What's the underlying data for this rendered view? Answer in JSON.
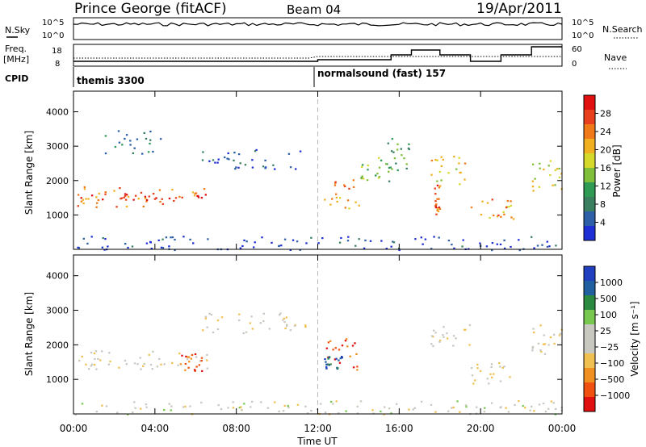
{
  "header": {
    "station": "Prince George (fitACF)",
    "beam": "Beam 04",
    "date": "19/Apr/2011"
  },
  "aux": {
    "nsky_label": "N.Sky",
    "nsky_top": "10^5",
    "nsky_bot": "10^0",
    "nsearch_label": "N.Search",
    "nsearch_top": "10^5",
    "nsearch_bot": "10^0",
    "freq_label": "Freq.",
    "freq_unit": "[MHz]",
    "freq_top": "18",
    "freq_bot": "8",
    "nave_label": "Nave",
    "nave_top": "60",
    "nave_bot": "0",
    "cpid_label": "CPID",
    "cpid_1": "themis 3300",
    "cpid_2": "normalsound (fast) 157"
  },
  "colors": {
    "power": [
      "#1f2fd6",
      "#2d5fa8",
      "#3a8060",
      "#2e9a54",
      "#7fbf3a",
      "#d6d92a",
      "#f0b020",
      "#f07a18",
      "#e8401c",
      "#e01010"
    ],
    "velocity": [
      "#e01010",
      "#f05010",
      "#f09020",
      "#f0c050",
      "#c8c8c0",
      "#c8c8c0",
      "#78c850",
      "#2a8a40",
      "#2060a0",
      "#2040c0"
    ]
  },
  "chart_data": [
    {
      "type": "heatmap",
      "quantity": "Power",
      "ylabel": "Slant Range [km]",
      "xlabel": "",
      "ylim": [
        0,
        4600
      ],
      "y_ticks": [
        1000,
        2000,
        3000,
        4000
      ],
      "x_ticks_hours": [
        0,
        4,
        8,
        12,
        16,
        20,
        24
      ],
      "colorbar": {
        "label": "Power [dB]",
        "ticks": [
          "28",
          "24",
          "20",
          "16",
          "12",
          "8",
          "4"
        ]
      },
      "patches": [
        {
          "t0": 0.0,
          "t1": 6.6,
          "r0": 1250,
          "r1": 1850,
          "level": 0.75
        },
        {
          "t0": 0.0,
          "t1": 6.6,
          "r0": 1450,
          "r1": 1650,
          "level": 0.95
        },
        {
          "t0": 6.3,
          "t1": 11.3,
          "r0": 2350,
          "r1": 2950,
          "level": 0.15
        },
        {
          "t0": 1.5,
          "t1": 4.3,
          "r0": 2800,
          "r1": 3500,
          "level": 0.25
        },
        {
          "t0": 12.3,
          "t1": 14.0,
          "r0": 1200,
          "r1": 2050,
          "level": 0.7
        },
        {
          "t0": 14.0,
          "t1": 15.5,
          "r0": 2000,
          "r1": 2700,
          "level": 0.4
        },
        {
          "t0": 15.3,
          "t1": 16.7,
          "r0": 2200,
          "r1": 3300,
          "level": 0.35
        },
        {
          "t0": 17.5,
          "t1": 19.3,
          "r0": 1900,
          "r1": 2750,
          "level": 0.6
        },
        {
          "t0": 17.7,
          "t1": 18.0,
          "r0": 1000,
          "r1": 1900,
          "level": 0.8
        },
        {
          "t0": 19.5,
          "t1": 21.6,
          "r0": 900,
          "r1": 1500,
          "level": 0.7
        },
        {
          "t0": 22.5,
          "t1": 24.0,
          "r0": 1700,
          "r1": 2600,
          "level": 0.55
        },
        {
          "t0": 0.0,
          "t1": 24.0,
          "r0": 0,
          "r1": 400,
          "level": 0.08
        }
      ]
    },
    {
      "type": "heatmap",
      "quantity": "Velocity",
      "ylabel": "Slant Range [km]",
      "xlabel": "Time UT",
      "ylim": [
        0,
        4600
      ],
      "y_ticks": [
        1000,
        2000,
        3000,
        4000
      ],
      "x_ticks_hours": [
        0,
        4,
        8,
        12,
        16,
        20,
        24
      ],
      "x_tick_labels": [
        "00:00",
        "04:00",
        "08:00",
        "12:00",
        "16:00",
        "20:00",
        "00:00"
      ],
      "colorbar": {
        "label": "Velocity [m s⁻¹]",
        "ticks": [
          "1000",
          "500",
          "100",
          "25",
          "−25",
          "−100",
          "−500",
          "−1000"
        ]
      },
      "patches": [
        {
          "t0": 0.0,
          "t1": 6.6,
          "r0": 1250,
          "r1": 1850,
          "level": 0.45
        },
        {
          "t0": 6.3,
          "t1": 11.5,
          "r0": 2350,
          "r1": 2950,
          "level": 0.45
        },
        {
          "t0": 5.2,
          "t1": 6.4,
          "r0": 1250,
          "r1": 1800,
          "level": 0.15
        },
        {
          "t0": 12.3,
          "t1": 14.0,
          "r0": 1300,
          "r1": 2200,
          "level": 0.15
        },
        {
          "t0": 12.3,
          "t1": 13.2,
          "r0": 1250,
          "r1": 1700,
          "level": 0.9
        },
        {
          "t0": 17.5,
          "t1": 19.5,
          "r0": 1900,
          "r1": 2700,
          "level": 0.45
        },
        {
          "t0": 19.5,
          "t1": 21.5,
          "r0": 900,
          "r1": 1500,
          "level": 0.45
        },
        {
          "t0": 22.5,
          "t1": 24.0,
          "r0": 1700,
          "r1": 2600,
          "level": 0.45
        },
        {
          "t0": 0.0,
          "t1": 24.0,
          "r0": 0,
          "r1": 400,
          "level": 0.5
        }
      ]
    }
  ]
}
